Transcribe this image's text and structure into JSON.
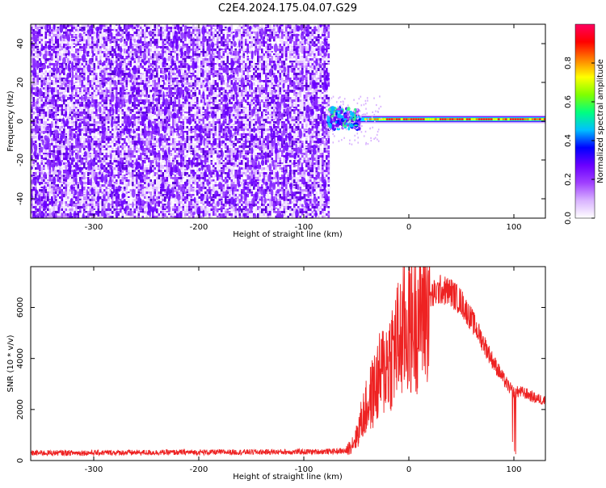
{
  "figure": {
    "title": "C2E4.2024.175.04.07.G29"
  },
  "chart_data": [
    {
      "type": "heatmap",
      "title": "C2E4.2024.175.04.07.G29",
      "xlabel": "Height of straight line (km)",
      "ylabel": "Frequency (Hz)",
      "xlim": [
        -360,
        130
      ],
      "ylim": [
        -50,
        50
      ],
      "xticks": [
        -300,
        -200,
        -100,
        0,
        100
      ],
      "yticks": [
        -40,
        -20,
        0,
        20,
        40
      ],
      "noise_region_x": [
        -360,
        -77
      ],
      "signal_region_x": [
        -77,
        130
      ],
      "signal_frequency_hz": 1,
      "colorbar": {
        "label": "Normalized spectral amplitude",
        "range": [
          0.0,
          1.0
        ],
        "ticks": [
          "0.0",
          "0.2",
          "0.4",
          "0.6",
          "0.8"
        ],
        "colors": [
          "#ffffff",
          "#d9b3ff",
          "#a040ff",
          "#6a00ff",
          "#0000ff",
          "#00c0ff",
          "#00ff80",
          "#80ff00",
          "#ffff00",
          "#ff8000",
          "#ff0000",
          "#ff0060"
        ]
      }
    },
    {
      "type": "line",
      "xlabel": "Height of straight line (km)",
      "ylabel": "SNR (10 * v/v)",
      "xlim": [
        -360,
        130
      ],
      "ylim": [
        0,
        7600
      ],
      "xticks": [
        -300,
        -200,
        -100,
        0,
        100
      ],
      "yticks": [
        0,
        2000,
        4000,
        6000
      ],
      "color": "#ee2222",
      "envelope": {
        "x": [
          -360,
          -90,
          -60,
          -50,
          -45,
          -35,
          -25,
          -15,
          -5,
          0,
          10,
          20,
          30,
          40,
          50,
          60,
          70,
          80,
          90,
          95,
          100,
          105,
          110,
          120,
          130
        ],
        "y": [
          250,
          300,
          330,
          900,
          1600,
          2600,
          3500,
          4300,
          5000,
          5300,
          5900,
          6400,
          6700,
          6600,
          6200,
          5500,
          4700,
          3900,
          3200,
          2900,
          2650,
          2700,
          2650,
          2450,
          2350
        ]
      }
    }
  ]
}
